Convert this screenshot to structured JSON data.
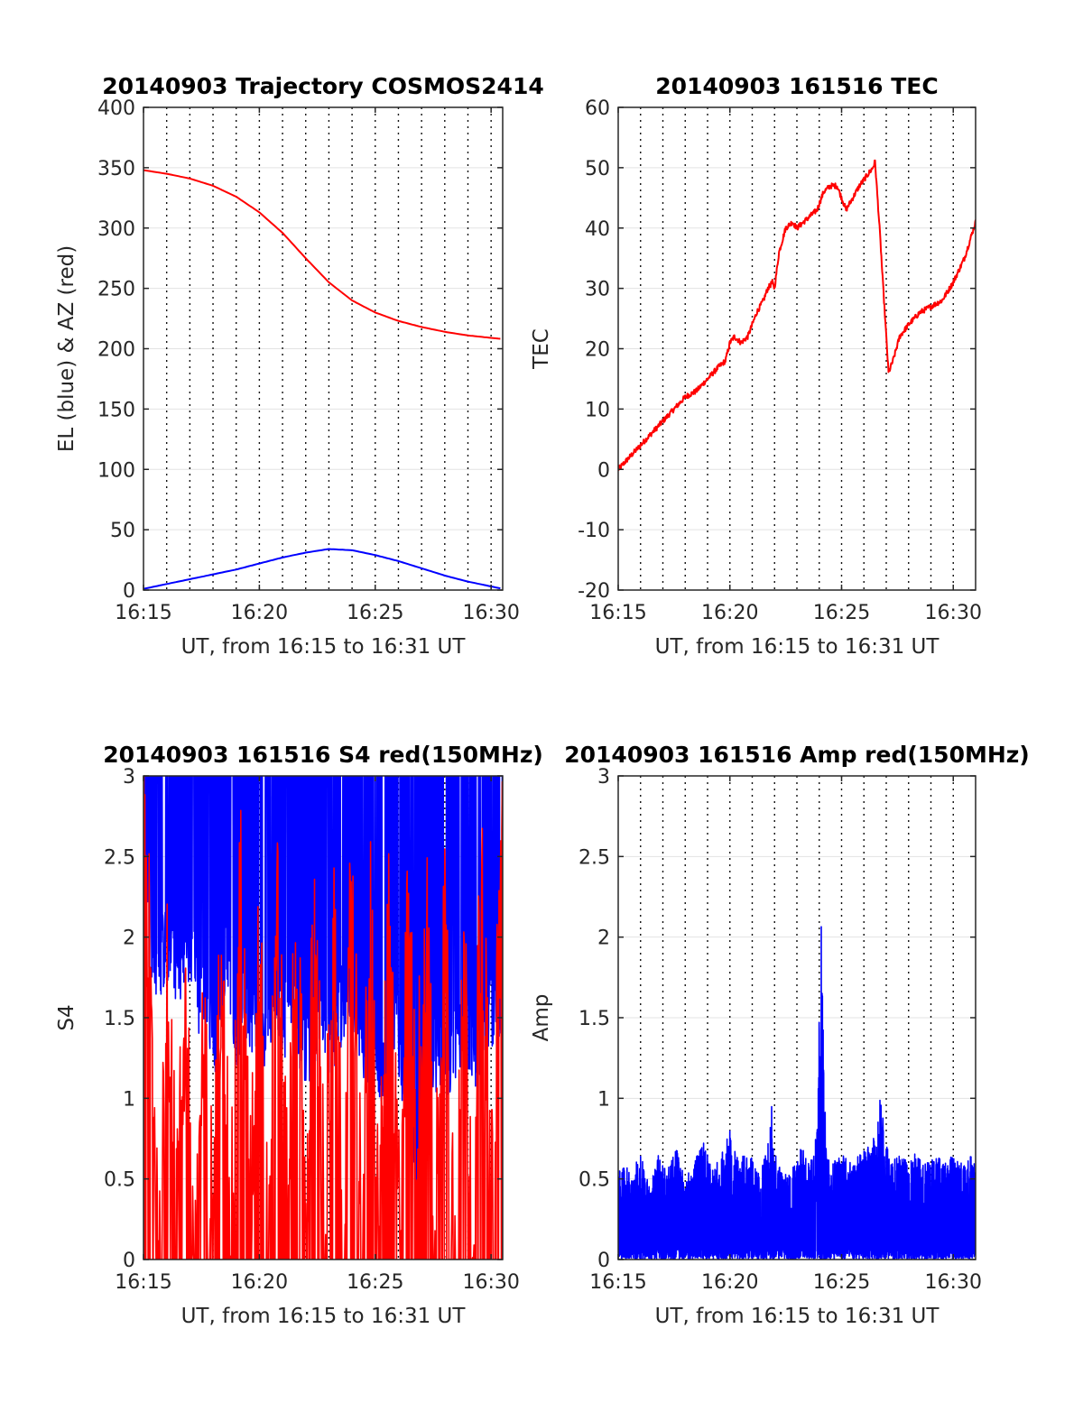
{
  "chart_data": [
    {
      "type": "line",
      "title": "20140903 Trajectory COSMOS2414",
      "xlabel": "UT, from 16:15 to 16:31 UT",
      "ylabel": "EL (blue) & AZ (red)",
      "x_unit": "minutes after 16:00 UT",
      "xlim": [
        15,
        30.5
      ],
      "ylim": [
        0,
        400
      ],
      "xticks": [
        15,
        20,
        25,
        30
      ],
      "xtick_labels": [
        "16:15",
        "16:20",
        "16:25",
        "16:30"
      ],
      "yticks": [
        0,
        50,
        100,
        150,
        200,
        250,
        300,
        350,
        400
      ],
      "ytick_labels": [
        "0",
        "50",
        "100",
        "150",
        "200",
        "250",
        "300",
        "350",
        "400"
      ],
      "grid": true,
      "series": [
        {
          "color": "#ff0000",
          "x": [
            15,
            16,
            17,
            18,
            19,
            20,
            21,
            22,
            23,
            24,
            25,
            26,
            27,
            28,
            29,
            30,
            30.5
          ],
          "y": [
            348,
            345,
            341,
            335,
            326,
            313,
            296,
            275,
            255,
            240,
            230,
            223,
            218,
            214,
            211,
            209,
            208
          ]
        },
        {
          "color": "#0000ff",
          "x": [
            15,
            16,
            17,
            18,
            19,
            20,
            21,
            22,
            23,
            24,
            25,
            26,
            27,
            28,
            29,
            30,
            30.5
          ],
          "y": [
            1,
            5,
            9,
            13,
            17,
            22,
            27,
            31,
            34,
            33,
            29,
            24,
            18,
            12,
            7,
            3,
            1
          ]
        }
      ]
    },
    {
      "type": "line",
      "title": "20140903 161516 TEC",
      "xlabel": "UT, from 16:15 to 16:31 UT",
      "ylabel": "TEC",
      "x_unit": "minutes after 16:00 UT",
      "xlim": [
        15,
        31
      ],
      "ylim": [
        -20,
        60
      ],
      "xticks": [
        15,
        20,
        25,
        30
      ],
      "xtick_labels": [
        "16:15",
        "16:20",
        "16:25",
        "16:30"
      ],
      "yticks": [
        -20,
        -10,
        0,
        10,
        20,
        30,
        40,
        50,
        60
      ],
      "ytick_labels": [
        "-20",
        "-10",
        "0",
        "10",
        "20",
        "30",
        "40",
        "50",
        "60"
      ],
      "grid": true,
      "series": [
        {
          "color": "#ff0000",
          "x": [
            15,
            15.5,
            16,
            16.5,
            17,
            17.5,
            18,
            18.5,
            19,
            19.5,
            19.8,
            20,
            20.2,
            20.5,
            20.8,
            21,
            21.2,
            21.5,
            21.7,
            21.9,
            22,
            22.2,
            22.5,
            22.8,
            23,
            23.3,
            23.6,
            23.9,
            24.2,
            24.5,
            24.8,
            25,
            25.2,
            25.5,
            25.8,
            26,
            26.2,
            26.4,
            26.5,
            26.7,
            26.9,
            27.1,
            27.3,
            27.6,
            28,
            28.5,
            29,
            29.5,
            30,
            30.5,
            31
          ],
          "y": [
            0,
            2,
            4,
            6,
            8,
            10,
            12,
            13,
            15,
            17,
            18,
            21,
            22,
            21,
            22,
            24,
            26,
            28,
            30,
            31,
            30,
            36,
            40,
            41,
            40,
            41,
            42,
            43,
            46,
            47,
            47,
            45,
            43,
            45,
            47,
            48,
            49,
            50,
            51,
            40,
            28,
            16,
            18,
            22,
            24,
            26,
            27,
            28,
            31,
            35,
            41
          ]
        }
      ]
    },
    {
      "type": "line",
      "title": "20140903 161516 S4 red(150MHz)",
      "xlabel": "UT, from 16:15 to 16:31 UT",
      "ylabel": "S4",
      "x_unit": "minutes after 16:00 UT",
      "xlim": [
        15,
        30.5
      ],
      "ylim": [
        0,
        3
      ],
      "xticks": [
        15,
        20,
        25,
        30
      ],
      "xtick_labels": [
        "16:15",
        "16:20",
        "16:25",
        "16:30"
      ],
      "yticks": [
        0,
        0.5,
        1,
        1.5,
        2,
        2.5,
        3
      ],
      "ytick_labels": [
        "0",
        "0.5",
        "1",
        "1.5",
        "2",
        "2.5",
        "3"
      ],
      "grid": true,
      "series": [
        {
          "color": "#0000ff",
          "x": [
            15,
            15.4,
            15.8,
            16.2,
            16.6,
            17,
            17.4,
            17.8,
            18.2,
            18.6,
            19,
            19.4,
            19.8,
            20.2,
            20.6,
            21,
            21.4,
            21.8,
            22.2,
            22.6,
            23,
            23.4,
            23.8,
            24.2,
            24.6,
            25,
            25.4,
            25.8,
            26.2,
            26.6,
            26.8,
            27,
            27.4,
            27.8,
            28.2,
            28.6,
            29,
            29.4,
            29.8,
            30.2,
            30.5
          ],
          "y": [
            2.2,
            1.8,
            1.9,
            2.0,
            1.7,
            2.0,
            1.6,
            1.6,
            1.3,
            2.0,
            1.4,
            1.6,
            1.5,
            1.3,
            1.7,
            1.5,
            1.5,
            1.4,
            1.3,
            1.6,
            1.3,
            1.5,
            1.7,
            1.6,
            1.3,
            1.3,
            1.2,
            1.5,
            1.2,
            1.3,
            0.0,
            1.1,
            1.2,
            1.3,
            1.2,
            1.4,
            1.4,
            1.3,
            1.5,
            1.6,
            1.5
          ]
        },
        {
          "color": "#ff0000",
          "x": [
            15,
            15.2,
            15.6,
            16,
            16.4,
            16.8,
            17.2,
            17.6,
            18,
            18.4,
            18.8,
            19.2,
            19.6,
            20,
            20.4,
            20.8,
            21.2,
            21.6,
            22,
            22.4,
            22.8,
            23.2,
            23.6,
            24,
            24.4,
            24.8,
            25.2,
            25.6,
            26,
            26.4,
            26.8,
            27.2,
            27.6,
            28,
            28.4,
            28.8,
            29.2,
            29.6,
            30,
            30.5
          ],
          "y": [
            2.4,
            1.9,
            0,
            1.8,
            0,
            1.3,
            0,
            1.0,
            0,
            1.9,
            0,
            2.2,
            0,
            1.8,
            0,
            2.1,
            0,
            1.9,
            0,
            2.0,
            0,
            1.7,
            0,
            2.2,
            0,
            1.8,
            0,
            2.0,
            0,
            1.7,
            0.7,
            1.9,
            0,
            2.1,
            0,
            1.8,
            0,
            2.2,
            0,
            2.5
          ]
        }
      ]
    },
    {
      "type": "line",
      "title": "20140903 161516 Amp red(150MHz)",
      "xlabel": "UT, from 16:15 to 16:31 UT",
      "ylabel": "Amp",
      "x_unit": "minutes after 16:00 UT",
      "xlim": [
        15,
        31
      ],
      "ylim": [
        0,
        3
      ],
      "xticks": [
        15,
        20,
        25,
        30
      ],
      "xtick_labels": [
        "16:15",
        "16:20",
        "16:25",
        "16:30"
      ],
      "yticks": [
        0,
        0.5,
        1,
        1.5,
        2,
        2.5,
        3
      ],
      "ytick_labels": [
        "0",
        "0.5",
        "1",
        "1.5",
        "2",
        "2.5",
        "3"
      ],
      "grid": true,
      "series": [
        {
          "color": "#0000ff",
          "x": [
            15,
            15.3,
            15.6,
            16,
            16.4,
            16.8,
            17.2,
            17.6,
            18,
            18.4,
            18.8,
            19.2,
            19.6,
            20,
            20.4,
            20.8,
            21.2,
            21.5,
            21.8,
            21.9,
            22,
            22.1,
            22.4,
            22.8,
            23.2,
            23.6,
            23.9,
            24,
            24.1,
            24.2,
            24.3,
            24.6,
            25,
            25.4,
            25.8,
            26.2,
            26.6,
            26.7,
            26.8,
            26.9,
            27.2,
            27.6,
            28,
            28.4,
            28.8,
            29.2,
            29.6,
            30,
            30.4,
            30.8,
            31
          ],
          "y": [
            0.55,
            0.6,
            0.5,
            0.7,
            0.45,
            0.65,
            0.55,
            0.7,
            0.5,
            0.6,
            0.75,
            0.55,
            0.65,
            0.8,
            0.6,
            0.7,
            0.55,
            0.6,
            0.8,
            1.15,
            0.7,
            0.6,
            0.55,
            0.6,
            0.7,
            0.6,
            0.8,
            1.6,
            2.13,
            1.3,
            0.7,
            0.6,
            0.7,
            0.6,
            0.65,
            0.7,
            0.8,
            1.0,
            1.0,
            0.8,
            0.6,
            0.65,
            0.6,
            0.7,
            0.6,
            0.65,
            0.6,
            0.65,
            0.6,
            0.65,
            0.6
          ]
        }
      ]
    }
  ]
}
